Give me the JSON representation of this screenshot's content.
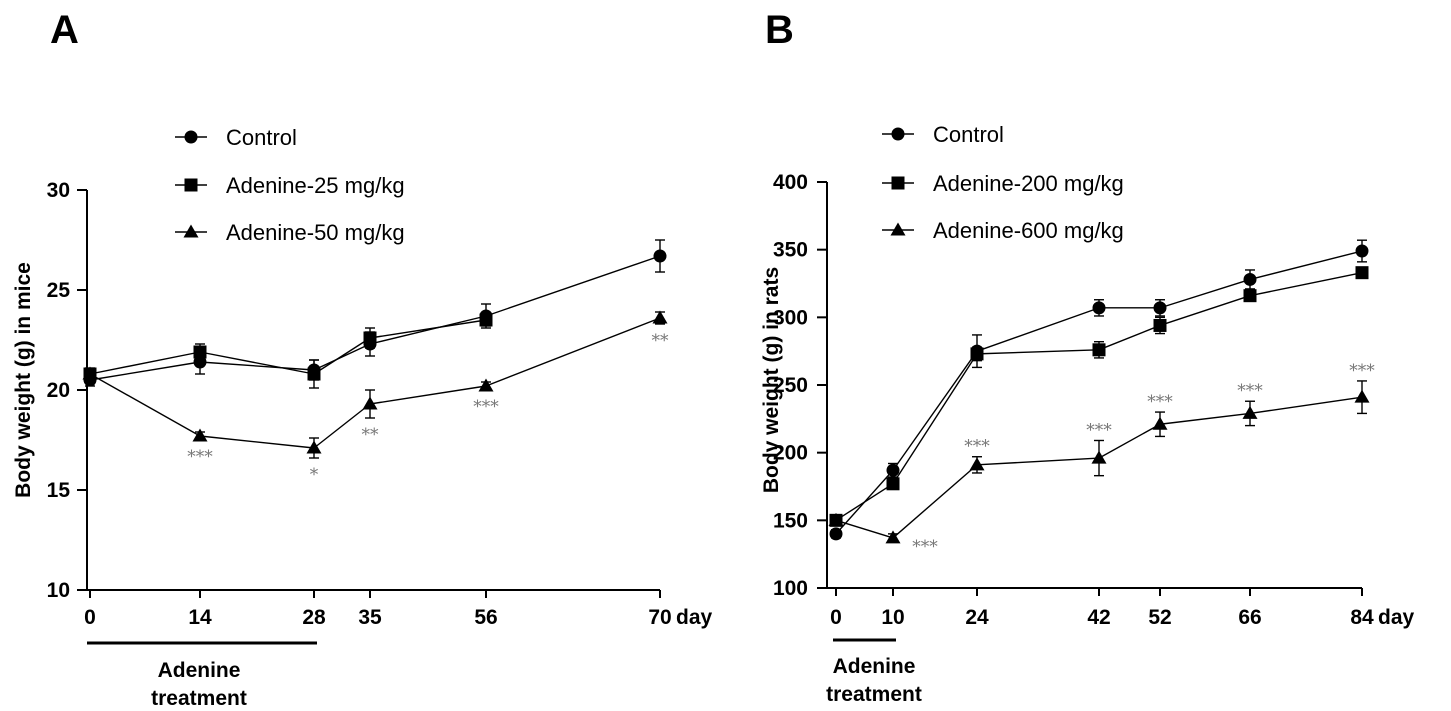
{
  "chart_data": [
    {
      "panel": "A",
      "type": "line",
      "ylabel": "Body weight (g) in mice",
      "x_unit": "day",
      "x": [
        0,
        14,
        28,
        35,
        56,
        70
      ],
      "ylim": [
        10,
        30
      ],
      "yticks": [
        10,
        15,
        20,
        25,
        30
      ],
      "treatment": {
        "label_lines": [
          "Adenine",
          "treatment"
        ],
        "from": 0,
        "to": 28
      },
      "series": [
        {
          "name": "Control",
          "marker": "circle",
          "values": [
            20.5,
            21.4,
            21.0,
            22.3,
            23.7,
            26.7
          ],
          "errors": [
            0.3,
            0.6,
            0.5,
            0.6,
            0.6,
            0.8
          ],
          "labels": [
            "",
            "",
            "",
            "",
            "",
            ""
          ]
        },
        {
          "name": "Adenine-25 mg/kg",
          "marker": "square",
          "values": [
            20.8,
            21.9,
            20.8,
            22.6,
            23.5,
            null
          ],
          "errors": [
            0.3,
            0.4,
            0.7,
            0.5,
            0.3,
            0
          ],
          "labels": [
            "",
            "",
            "",
            "",
            "",
            ""
          ]
        },
        {
          "name": "Adenine-50 mg/kg",
          "marker": "triangle",
          "values": [
            20.8,
            17.7,
            17.1,
            19.3,
            20.2,
            23.6
          ],
          "errors": [
            0.2,
            0.2,
            0.5,
            0.7,
            0.2,
            0.3
          ],
          "labels": [
            "",
            "***",
            "*",
            "**",
            "***",
            "**"
          ]
        }
      ]
    },
    {
      "panel": "B",
      "type": "line",
      "ylabel": "Body weight (g) in rats",
      "x_unit": "day",
      "x": [
        0,
        10,
        24,
        42,
        52,
        66,
        84
      ],
      "ylim": [
        100,
        400
      ],
      "yticks": [
        100,
        150,
        200,
        250,
        300,
        350,
        400
      ],
      "treatment": {
        "label_lines": [
          "Adenine",
          "treatment"
        ],
        "from": 0,
        "to": 10
      },
      "series": [
        {
          "name": "Control",
          "marker": "circle",
          "values": [
            140,
            187,
            275,
            307,
            307,
            328,
            349
          ],
          "errors": [
            3,
            5,
            12,
            6,
            6,
            7,
            8
          ],
          "labels": [
            "",
            "",
            "",
            "",
            "",
            "",
            ""
          ]
        },
        {
          "name": "Adenine-200 mg/kg",
          "marker": "square",
          "values": [
            150,
            177,
            273,
            276,
            294,
            316,
            333
          ],
          "errors": [
            3,
            3,
            5,
            6,
            6,
            4,
            4
          ],
          "labels": [
            "",
            "",
            "",
            "",
            "",
            "",
            ""
          ]
        },
        {
          "name": "Adenine-600 mg/kg",
          "marker": "triangle",
          "values": [
            150,
            137,
            191,
            196,
            221,
            229,
            241
          ],
          "errors": [
            3,
            3,
            6,
            13,
            9,
            9,
            12
          ],
          "labels": [
            "",
            "***",
            "***",
            "***",
            "***",
            "***",
            "***"
          ]
        }
      ]
    }
  ]
}
